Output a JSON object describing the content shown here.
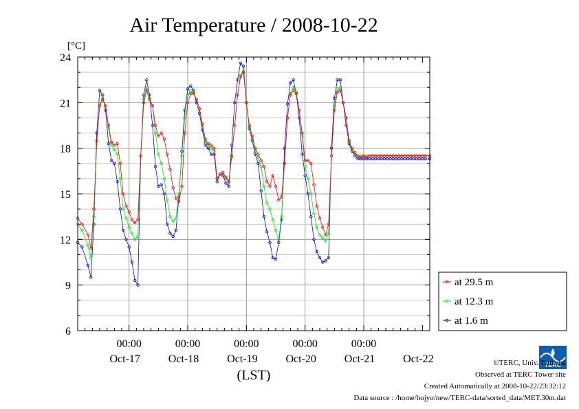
{
  "title": "Air Temperature / 2008-10-22",
  "unit_label": "[°C]",
  "xlabel": "(LST)",
  "credits": [
    "©TERC, Univ. Tsukuba",
    "Observed at TERC Tower site",
    "Created Automatically at 2008-10-22/23:32:12",
    "Data source : /home/hojyo/new/TERC-data/sorted_data/MET.30m.dat"
  ],
  "logo_text": "TERC",
  "colors": {
    "red": "#ff0000",
    "green": "#00ee00",
    "blue": "#0000ff",
    "grid": "#999999"
  },
  "chart_data": {
    "type": "line",
    "title": "Air Temperature / 2008-10-22",
    "ylabel": "[°C]",
    "xlabel": "(LST)",
    "ylim": [
      6,
      24
    ],
    "yticks": [
      6,
      9,
      12,
      15,
      18,
      21,
      24
    ],
    "xlim": [
      -0.875,
      5.125
    ],
    "xticks": [
      0,
      1,
      2,
      3,
      4
    ],
    "xtick_labels": [
      {
        "time": "00:00",
        "date": "Oct-17"
      },
      {
        "time": "00:00",
        "date": "Oct-18"
      },
      {
        "time": "00:00",
        "date": "Oct-19"
      },
      {
        "time": "00:00",
        "date": "Oct-20"
      },
      {
        "time": "00:00",
        "date": "Oct-21"
      }
    ],
    "last_date_label": "Oct-22",
    "x_unit": "days relative to Oct-17 00:00",
    "grid": true,
    "legend_position": "right",
    "series": [
      {
        "name": "at 29.5 m",
        "color": "#ff0000",
        "x": [
          -0.875,
          -0.8,
          -0.7,
          -0.65,
          -0.6,
          -0.55,
          -0.5,
          -0.45,
          -0.4,
          -0.35,
          -0.3,
          -0.25,
          -0.2,
          -0.15,
          -0.1,
          -0.05,
          0.0,
          0.05,
          0.1,
          0.15,
          0.2,
          0.25,
          0.3,
          0.35,
          0.4,
          0.45,
          0.5,
          0.55,
          0.6,
          0.65,
          0.7,
          0.75,
          0.8,
          0.85,
          0.9,
          0.95,
          1.0,
          1.05,
          1.1,
          1.15,
          1.2,
          1.25,
          1.3,
          1.35,
          1.4,
          1.45,
          1.5,
          1.55,
          1.6,
          1.65,
          1.7,
          1.75,
          1.8,
          1.85,
          1.9,
          1.95,
          2.0,
          2.05,
          2.1,
          2.15,
          2.2,
          2.25,
          2.3,
          2.35,
          2.4,
          2.45,
          2.5,
          2.55,
          2.6,
          2.65,
          2.7,
          2.75,
          2.8,
          2.85,
          2.9,
          2.95,
          3.0,
          3.05,
          3.1,
          3.15,
          3.2,
          3.25,
          3.3,
          3.35,
          3.4,
          3.45,
          3.5,
          3.55,
          3.6,
          3.65,
          3.7,
          3.75,
          3.8,
          3.85,
          3.9,
          3.95,
          4.0,
          4.05,
          4.1,
          4.15,
          4.2,
          4.25,
          4.3,
          4.35,
          4.4,
          4.45,
          4.5,
          4.55,
          4.6,
          4.65,
          4.7,
          4.75,
          4.8,
          4.85,
          4.9,
          4.95,
          5.0,
          5.05,
          5.125
        ],
        "values": [
          13.4,
          13.0,
          12.3,
          11.4,
          14.0,
          18.5,
          20.8,
          21.2,
          20.8,
          19.5,
          18.4,
          18.2,
          18.3,
          17.0,
          15.0,
          14.2,
          13.8,
          13.3,
          13.1,
          13.3,
          17.5,
          21.0,
          21.8,
          21.2,
          20.8,
          19.5,
          18.8,
          19.0,
          18.6,
          17.6,
          16.6,
          15.4,
          14.7,
          14.5,
          15.5,
          19.0,
          21.0,
          21.6,
          21.6,
          21.2,
          20.6,
          19.6,
          18.6,
          18.3,
          18.2,
          18.0,
          16.0,
          16.3,
          16.4,
          16.1,
          15.8,
          17.5,
          19.5,
          21.5,
          22.7,
          23.0,
          21.0,
          19.5,
          18.8,
          18.0,
          17.6,
          17.2,
          16.8,
          15.8,
          15.5,
          16.2,
          15.5,
          14.6,
          14.8,
          17.0,
          20.0,
          21.5,
          21.8,
          21.6,
          20.5,
          19.0,
          17.2,
          17.2,
          17.0,
          15.6,
          14.2,
          13.4,
          12.8,
          12.3,
          13.0,
          17.5,
          20.5,
          21.7,
          21.8,
          21.0,
          20.0,
          18.5,
          18.0,
          17.7,
          17.5,
          17.4,
          17.5,
          17.4,
          17.5,
          17.5,
          17.5,
          17.5,
          17.5,
          17.5,
          17.5,
          17.5,
          17.5,
          17.5,
          17.5,
          17.5,
          17.5,
          17.5,
          17.5,
          17.5,
          17.5,
          17.5,
          17.5,
          17.5,
          17.5
        ]
      },
      {
        "name": "at 12.3 m",
        "color": "#00ee00",
        "x": [
          -0.875,
          -0.8,
          -0.7,
          -0.65,
          -0.6,
          -0.55,
          -0.5,
          -0.45,
          -0.4,
          -0.35,
          -0.3,
          -0.25,
          -0.2,
          -0.15,
          -0.1,
          -0.05,
          0.0,
          0.05,
          0.1,
          0.15,
          0.2,
          0.25,
          0.3,
          0.35,
          0.4,
          0.45,
          0.5,
          0.55,
          0.6,
          0.65,
          0.7,
          0.75,
          0.8,
          0.85,
          0.9,
          0.95,
          1.0,
          1.05,
          1.1,
          1.15,
          1.2,
          1.25,
          1.3,
          1.35,
          1.4,
          1.45,
          1.5,
          1.55,
          1.6,
          1.65,
          1.7,
          1.75,
          1.8,
          1.85,
          1.9,
          1.95,
          2.0,
          2.05,
          2.1,
          2.15,
          2.2,
          2.25,
          2.3,
          2.35,
          2.4,
          2.45,
          2.5,
          2.55,
          2.6,
          2.65,
          2.7,
          2.75,
          2.8,
          2.85,
          2.9,
          2.95,
          3.0,
          3.05,
          3.1,
          3.15,
          3.2,
          3.25,
          3.3,
          3.35,
          3.4,
          3.45,
          3.5,
          3.55,
          3.6,
          3.65,
          3.7,
          3.75,
          3.8,
          3.85,
          3.9,
          3.95,
          4.0,
          4.05,
          4.1,
          4.15,
          4.2,
          4.25,
          4.3,
          4.35,
          4.4,
          4.45,
          4.5,
          4.55,
          4.6,
          4.65,
          4.7,
          4.75,
          4.8,
          4.85,
          4.9,
          4.95,
          5.0,
          5.05,
          5.125
        ],
        "values": [
          13.0,
          12.6,
          11.6,
          10.8,
          13.5,
          18.3,
          20.9,
          21.3,
          20.8,
          19.3,
          18.2,
          17.9,
          17.6,
          16.0,
          14.0,
          13.4,
          12.8,
          12.4,
          12.0,
          12.2,
          17.5,
          21.2,
          22.0,
          21.3,
          20.8,
          19.0,
          17.6,
          17.0,
          16.0,
          14.6,
          13.5,
          13.2,
          13.4,
          15.0,
          17.5,
          20.0,
          21.5,
          21.8,
          21.7,
          21.2,
          20.6,
          19.5,
          18.4,
          18.2,
          18.0,
          17.8,
          16.0,
          16.3,
          16.4,
          16.0,
          15.8,
          17.4,
          19.5,
          21.5,
          22.8,
          23.1,
          21.0,
          19.4,
          18.6,
          17.8,
          17.4,
          16.8,
          15.5,
          14.4,
          14.0,
          13.3,
          12.6,
          12.0,
          13.5,
          17.0,
          20.0,
          21.6,
          22.0,
          21.7,
          20.5,
          18.8,
          16.8,
          16.0,
          15.0,
          13.7,
          12.8,
          12.3,
          12.1,
          11.9,
          12.4,
          17.5,
          20.8,
          21.9,
          22.0,
          21.0,
          20.0,
          18.4,
          17.9,
          17.6,
          17.5,
          17.5,
          17.5,
          17.5,
          17.5,
          17.5,
          17.5,
          17.5,
          17.5,
          17.5,
          17.5,
          17.5,
          17.5,
          17.5,
          17.5,
          17.5,
          17.5,
          17.5,
          17.5,
          17.5,
          17.5,
          17.5,
          17.5,
          17.5,
          17.5
        ]
      },
      {
        "name": "at 1.6 m",
        "color": "#0000ff",
        "x": [
          -0.875,
          -0.8,
          -0.7,
          -0.65,
          -0.6,
          -0.55,
          -0.5,
          -0.45,
          -0.4,
          -0.35,
          -0.3,
          -0.25,
          -0.2,
          -0.15,
          -0.1,
          -0.05,
          0.0,
          0.05,
          0.1,
          0.15,
          0.2,
          0.25,
          0.3,
          0.35,
          0.4,
          0.45,
          0.5,
          0.55,
          0.6,
          0.65,
          0.7,
          0.75,
          0.8,
          0.85,
          0.9,
          0.95,
          1.0,
          1.05,
          1.1,
          1.15,
          1.2,
          1.25,
          1.3,
          1.35,
          1.4,
          1.45,
          1.5,
          1.55,
          1.6,
          1.65,
          1.7,
          1.75,
          1.8,
          1.85,
          1.9,
          1.95,
          2.0,
          2.05,
          2.1,
          2.15,
          2.2,
          2.25,
          2.3,
          2.35,
          2.4,
          2.45,
          2.5,
          2.55,
          2.6,
          2.65,
          2.7,
          2.75,
          2.8,
          2.85,
          2.9,
          2.95,
          3.0,
          3.05,
          3.1,
          3.15,
          3.2,
          3.25,
          3.3,
          3.35,
          3.4,
          3.45,
          3.5,
          3.55,
          3.6,
          3.65,
          3.7,
          3.75,
          3.8,
          3.85,
          3.9,
          3.95,
          4.0,
          4.05,
          4.1,
          4.15,
          4.2,
          4.25,
          4.3,
          4.35,
          4.4,
          4.45,
          4.5,
          4.55,
          4.6,
          4.65,
          4.7,
          4.75,
          4.8,
          4.85,
          4.9,
          4.95,
          5.0,
          5.05,
          5.125
        ],
        "values": [
          11.8,
          11.5,
          10.3,
          9.5,
          13.0,
          19.0,
          21.8,
          21.5,
          20.5,
          18.3,
          17.2,
          17.0,
          15.8,
          14.0,
          12.6,
          12.0,
          11.5,
          10.5,
          9.3,
          9.0,
          17.5,
          21.5,
          22.5,
          21.5,
          19.5,
          16.8,
          15.5,
          15.6,
          15.0,
          13.0,
          12.4,
          12.2,
          12.6,
          14.8,
          17.8,
          20.5,
          21.9,
          22.1,
          21.8,
          21.0,
          20.3,
          19.2,
          18.2,
          18.0,
          17.6,
          17.6,
          15.8,
          16.3,
          16.2,
          15.7,
          15.5,
          18.2,
          21.0,
          22.5,
          23.6,
          23.4,
          21.0,
          19.3,
          18.5,
          17.6,
          17.0,
          15.2,
          13.5,
          12.5,
          11.8,
          10.8,
          10.7,
          11.8,
          13.3,
          18.0,
          20.9,
          22.3,
          22.5,
          21.6,
          20.0,
          17.6,
          16.2,
          15.0,
          13.5,
          12.0,
          11.2,
          10.8,
          10.5,
          10.6,
          10.8,
          18.0,
          21.3,
          22.5,
          22.5,
          21.0,
          19.5,
          18.3,
          17.8,
          17.5,
          17.3,
          17.3,
          17.3,
          17.3,
          17.3,
          17.3,
          17.3,
          17.3,
          17.3,
          17.3,
          17.3,
          17.3,
          17.3,
          17.3,
          17.3,
          17.3,
          17.3,
          17.3,
          17.3,
          17.3,
          17.3,
          17.3,
          17.3,
          17.3,
          17.3
        ]
      }
    ]
  }
}
